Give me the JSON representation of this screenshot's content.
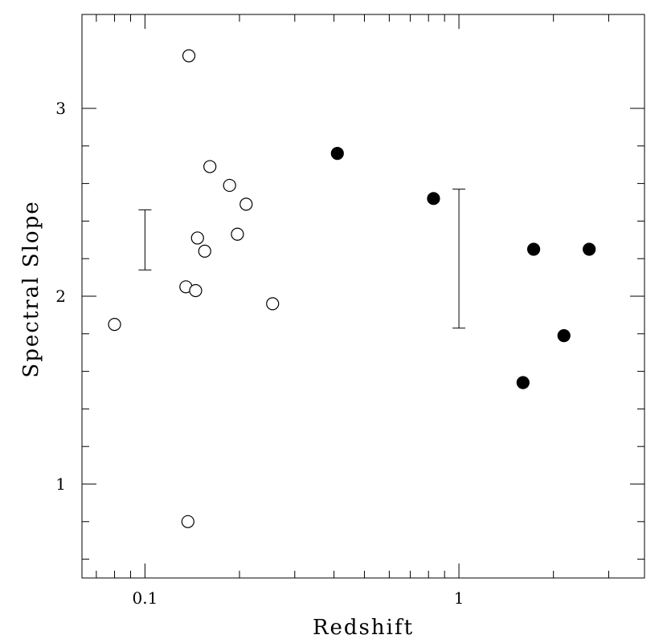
{
  "chart_data": {
    "type": "scatter",
    "title": "",
    "xlabel": "Redshift",
    "ylabel": "Spectral Slope",
    "xscale": "log",
    "xlim": [
      0.063,
      3.9
    ],
    "ylim": [
      0.5,
      3.5
    ],
    "x_tick_labels": [
      {
        "value": 0.1,
        "label": "0.1"
      },
      {
        "value": 1,
        "label": "1"
      }
    ],
    "y_tick_labels": [
      {
        "value": 1,
        "label": "1"
      },
      {
        "value": 2,
        "label": "2"
      },
      {
        "value": 3,
        "label": "3"
      }
    ],
    "series": [
      {
        "marker": "open-circle",
        "color": "#000000",
        "points": [
          {
            "x": 0.08,
            "y": 1.85
          },
          {
            "x": 0.135,
            "y": 2.05
          },
          {
            "x": 0.137,
            "y": 0.8
          },
          {
            "x": 0.138,
            "y": 3.28
          },
          {
            "x": 0.145,
            "y": 2.03
          },
          {
            "x": 0.147,
            "y": 2.31
          },
          {
            "x": 0.155,
            "y": 2.24
          },
          {
            "x": 0.161,
            "y": 2.69
          },
          {
            "x": 0.186,
            "y": 2.59
          },
          {
            "x": 0.197,
            "y": 2.33
          },
          {
            "x": 0.21,
            "y": 2.49
          },
          {
            "x": 0.255,
            "y": 1.96
          }
        ]
      },
      {
        "marker": "filled-circle",
        "color": "#000000",
        "points": [
          {
            "x": 0.41,
            "y": 2.76
          },
          {
            "x": 0.83,
            "y": 2.52
          },
          {
            "x": 1.6,
            "y": 1.54
          },
          {
            "x": 1.73,
            "y": 2.25
          },
          {
            "x": 2.16,
            "y": 1.79
          },
          {
            "x": 2.6,
            "y": 2.25
          }
        ]
      }
    ],
    "error_bars": [
      {
        "x": 0.1,
        "y_low": 2.14,
        "y_high": 2.46
      },
      {
        "x": 1.0,
        "y_low": 1.83,
        "y_high": 2.57
      }
    ],
    "grid": false,
    "legend": "none"
  }
}
